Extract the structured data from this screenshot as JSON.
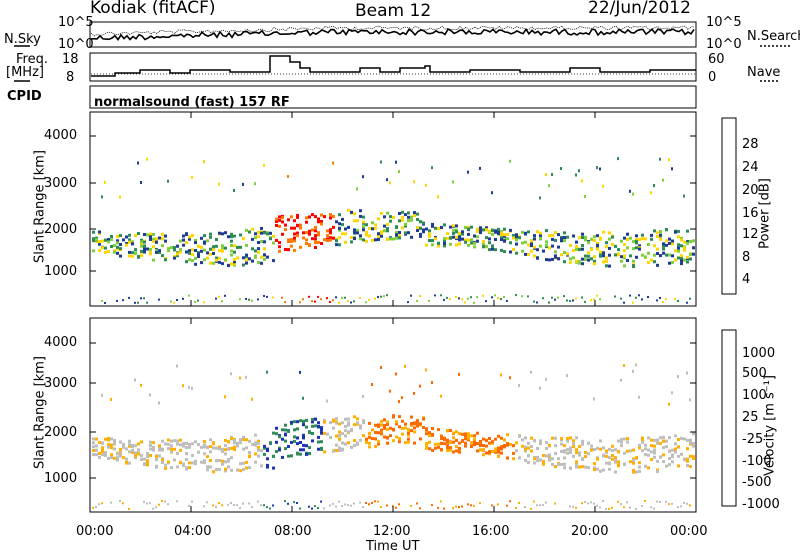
{
  "header": {
    "station": "Kodiak (fitACF)",
    "beam": "Beam 12",
    "date": "22/Jun/2012"
  },
  "noise_panel": {
    "left_label": "N.Sky",
    "right_label": "N.Search",
    "left_ticks": [
      "10^5",
      "10^0"
    ],
    "right_ticks": [
      "10^5",
      "10^0"
    ]
  },
  "freq_panel": {
    "left_label_1": "Freq.",
    "left_label_2": "[MHz]",
    "right_label": "Nave",
    "left_ticks": [
      "18",
      "8"
    ],
    "right_ticks": [
      "60",
      "0"
    ]
  },
  "cpid": {
    "label": "CPID",
    "text": "normalsound (fast) 157 RF"
  },
  "chart_data": [
    {
      "type": "heatmap",
      "title": "Power",
      "ylabel": "Slant Range [km]",
      "yticks": [
        "4000",
        "3000",
        "2000",
        "1000"
      ],
      "ylim": [
        180,
        4600
      ],
      "colorbar_label": "Power [dB]",
      "colorbar_ticks": [
        "28",
        "24",
        "20",
        "16",
        "12",
        "8",
        "4"
      ],
      "colorbar_colors": [
        "#ff0000",
        "#ff7a00",
        "#ffd700",
        "#7dcf3c",
        "#2e8b57",
        "#1e3c96",
        "#0000ff"
      ]
    },
    {
      "type": "heatmap",
      "title": "Velocity",
      "ylabel": "Slant Range [km]",
      "yticks": [
        "4000",
        "3000",
        "2000",
        "1000"
      ],
      "ylim": [
        180,
        4600
      ],
      "colorbar_label": "Velocity [m s⁻¹]",
      "colorbar_ticks": [
        "1000",
        "500",
        "100",
        "25",
        "-25",
        "-100",
        "-500",
        "-1000"
      ],
      "colorbar_colors": [
        "#1e32b4",
        "#2e8b57",
        "#4cc43c",
        "#bebebe",
        "#bebebe",
        "#ffb000",
        "#ff6a00",
        "#ff0000"
      ]
    }
  ],
  "time_axis": {
    "label": "Time UT",
    "ticks": [
      "00:00",
      "04:00",
      "08:00",
      "12:00",
      "16:00",
      "20:00",
      "00:00"
    ]
  }
}
